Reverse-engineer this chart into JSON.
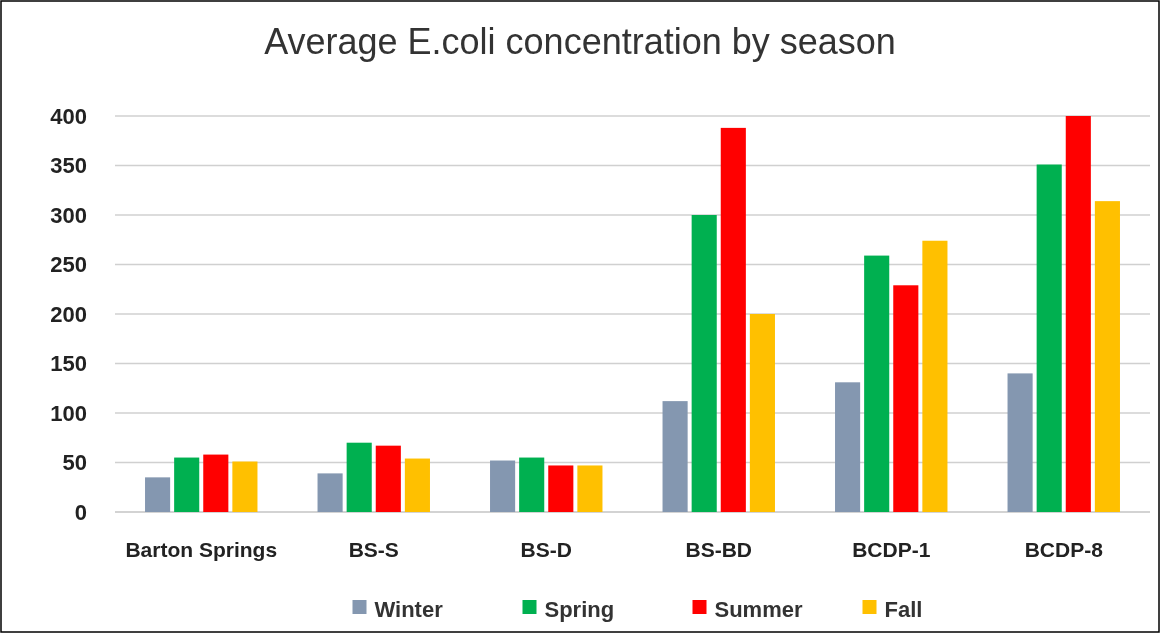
{
  "chart_data": {
    "type": "bar",
    "title": "Average E.coli concentration by season",
    "categories": [
      "Barton Springs",
      "BS-S",
      "BS-D",
      "BS-BD",
      "BCDP-1",
      "BCDP-8"
    ],
    "series": [
      {
        "name": "Winter",
        "color": "#8497b0",
        "values": [
          35,
          39,
          52,
          112,
          131,
          140
        ]
      },
      {
        "name": "Spring",
        "color": "#00b050",
        "values": [
          55,
          70,
          55,
          300,
          259,
          351
        ]
      },
      {
        "name": "Summer",
        "color": "#ff0000",
        "values": [
          58,
          67,
          47,
          388,
          229,
          400
        ]
      },
      {
        "name": "Fall",
        "color": "#ffc000",
        "values": [
          51,
          54,
          47,
          200,
          274,
          314
        ]
      }
    ],
    "ylim": [
      0,
      400
    ],
    "yticks": [
      0,
      50,
      100,
      150,
      200,
      250,
      300,
      350,
      400
    ],
    "grid": "y",
    "legend": "bottom"
  }
}
